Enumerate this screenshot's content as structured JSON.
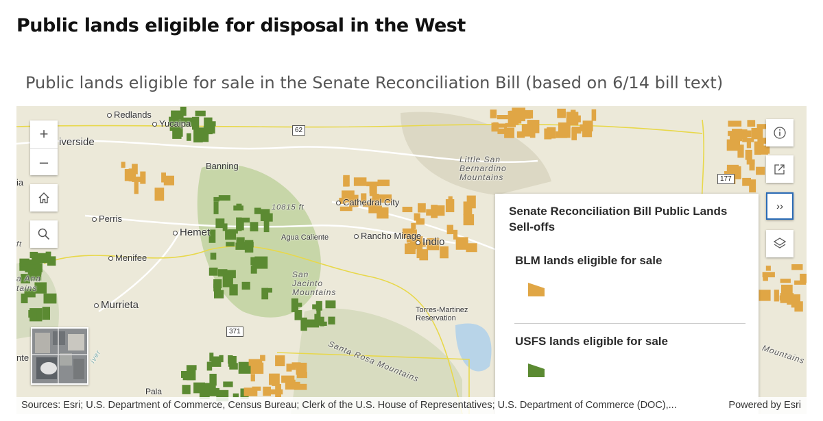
{
  "page_title": "Public lands eligible for disposal in the West",
  "map_title": "Public lands eligible for sale in the Senate Reconciliation Bill (based on 6/14 bill text)",
  "places": {
    "redlands": "Redlands",
    "yucaipa": "Yucaipa",
    "riverside": "iverside",
    "banning": "Banning",
    "perris": "Perris",
    "hemet": "Hemet",
    "menifee": "Menifee",
    "murrieta": "Murrieta",
    "cathedral_city": "Cathedral City",
    "rancho_mirage": "Rancho Mirage",
    "indio": "Indio",
    "agua_caliente": "Agua Caliente",
    "elevation": "10815 ft",
    "san_jacinto": "San\nJacinto\nMountains",
    "little_san_bernardino": "Little San\nBernardino\nMountains",
    "santa_rosa": "Santa Rosa Mountains",
    "torres_martinez": "Torres-Martinez\nReservation",
    "mountains_right": "Mountains",
    "pala": "Pala",
    "left_edge_ia": "ia",
    "left_edge_ft": "ft",
    "left_edge_ana": "a Ana",
    "left_edge_tains": "tains",
    "left_edge_nte": "nte",
    "left_edge_iver": "iver"
  },
  "shields": {
    "route62": "62",
    "route371": "371",
    "route177": "177"
  },
  "controls": {
    "zoom_in": "+",
    "zoom_out": "–",
    "home_icon": "home-icon",
    "search_icon": "search-icon",
    "info_icon": "info-icon",
    "share_icon": "share-icon",
    "collapse": "››",
    "layers_icon": "layers-icon"
  },
  "legend": {
    "title": "Senate Reconciliation Bill Public Lands Sell-offs",
    "items": [
      {
        "label": "BLM lands eligible for sale",
        "color": "#e0a645"
      },
      {
        "label": "USFS lands eligible for sale",
        "color": "#5b8a32"
      }
    ]
  },
  "attribution": {
    "sources": "Sources: Esri; U.S. Department of Commerce, Census Bureau; Clerk of the U.S. House of Representatives; U.S. Department of Commerce (DOC),...",
    "powered_by": "Powered by Esri"
  },
  "colors": {
    "blm": "#e0a645",
    "usfs": "#5b8a32",
    "boundary": "#e8d84a",
    "base": "#ece9d9",
    "forest_tint": "#c7d6a8",
    "water": "#b8d4e8"
  }
}
